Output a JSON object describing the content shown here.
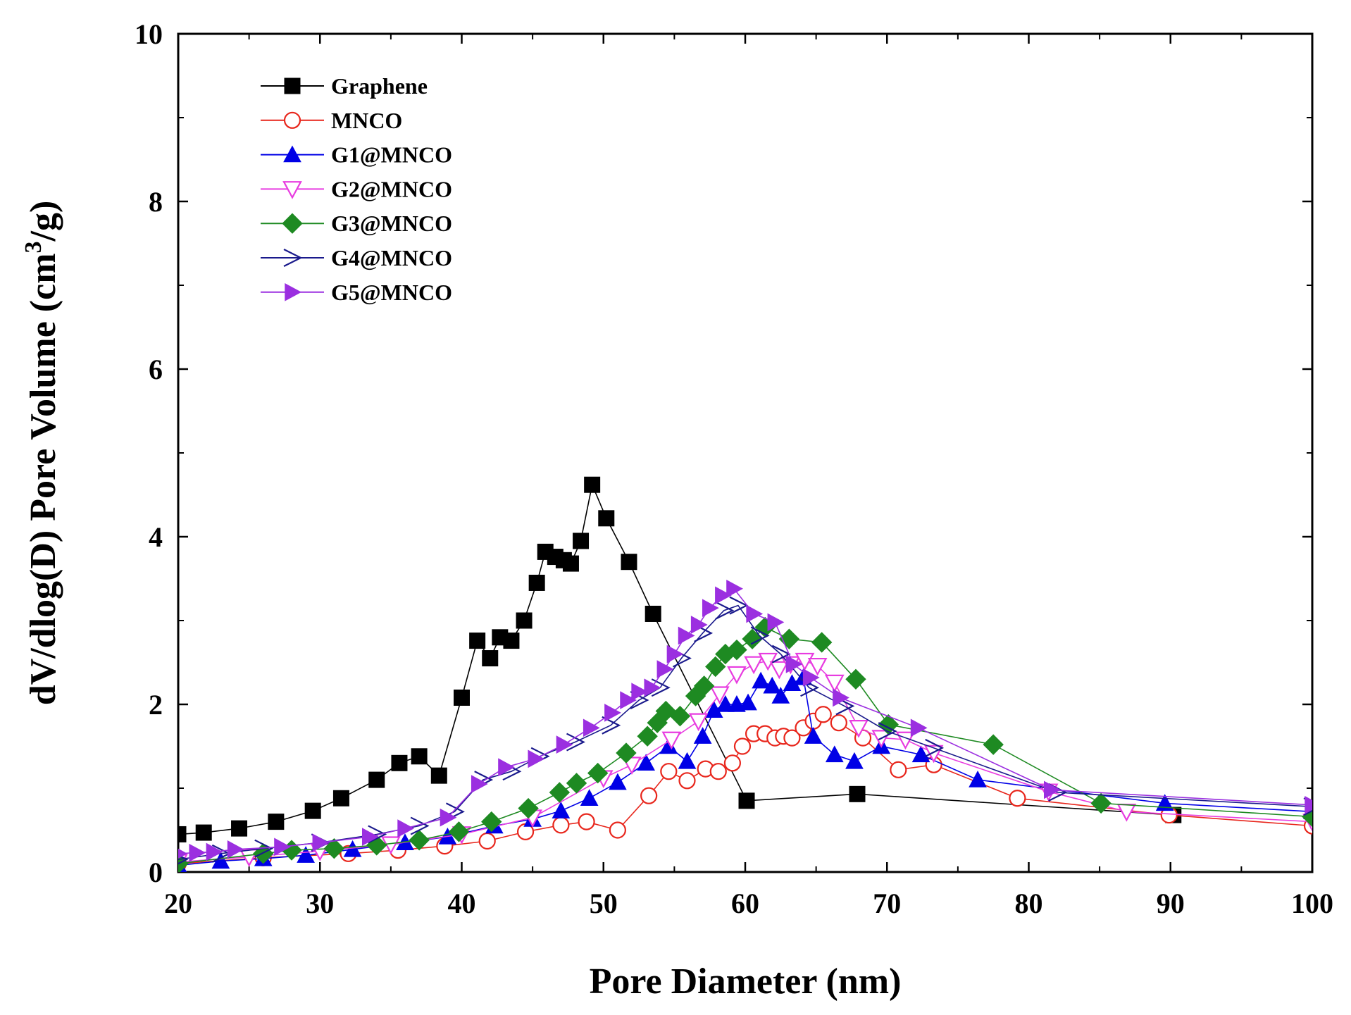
{
  "chart_data": {
    "type": "line",
    "title": "",
    "xlabel": "Pore Diameter (nm)",
    "ylabel": {
      "prefix": "dV/dlog(D) Pore Volume (cm",
      "superscript": "3",
      "suffix": "/g)"
    },
    "xlim": [
      20,
      100
    ],
    "ylim": [
      0,
      10
    ],
    "x_ticks": [
      "20",
      "30",
      "40",
      "50",
      "60",
      "70",
      "80",
      "90",
      "100"
    ],
    "y_ticks": [
      "0",
      "2",
      "4",
      "6",
      "8",
      "10"
    ],
    "legend_position": "top-left",
    "series": [
      {
        "name": "Graphene",
        "color": "#000000",
        "marker": "square-filled",
        "points": [
          [
            20,
            0.45
          ],
          [
            21.8,
            0.47
          ],
          [
            24.3,
            0.52
          ],
          [
            26.9,
            0.6
          ],
          [
            29.5,
            0.73
          ],
          [
            31.5,
            0.88
          ],
          [
            34,
            1.1
          ],
          [
            35.6,
            1.3
          ],
          [
            37,
            1.38
          ],
          [
            38.4,
            1.15
          ],
          [
            40,
            2.08
          ],
          [
            41.1,
            2.76
          ],
          [
            42,
            2.55
          ],
          [
            42.7,
            2.8
          ],
          [
            43.5,
            2.76
          ],
          [
            44.4,
            3.0
          ],
          [
            45.3,
            3.45
          ],
          [
            45.9,
            3.82
          ],
          [
            46.6,
            3.76
          ],
          [
            47.2,
            3.72
          ],
          [
            47.7,
            3.68
          ],
          [
            48.4,
            3.95
          ],
          [
            49.2,
            4.62
          ],
          [
            50.2,
            4.22
          ],
          [
            51.8,
            3.7
          ],
          [
            53.5,
            3.08
          ],
          [
            60.1,
            0.85
          ],
          [
            67.9,
            0.93
          ],
          [
            90.2,
            0.68
          ]
        ]
      },
      {
        "name": "MNCO",
        "color": "#e8261c",
        "marker": "circle-open",
        "points": [
          [
            20,
            0.1
          ],
          [
            26,
            0.17
          ],
          [
            32,
            0.22
          ],
          [
            35.5,
            0.26
          ],
          [
            38.8,
            0.31
          ],
          [
            41.8,
            0.37
          ],
          [
            44.5,
            0.48
          ],
          [
            47,
            0.56
          ],
          [
            48.8,
            0.6
          ],
          [
            51,
            0.5
          ],
          [
            53.2,
            0.91
          ],
          [
            54.6,
            1.2
          ],
          [
            55.9,
            1.09
          ],
          [
            57.2,
            1.23
          ],
          [
            58.1,
            1.2
          ],
          [
            59.1,
            1.3
          ],
          [
            59.8,
            1.5
          ],
          [
            60.6,
            1.65
          ],
          [
            61.4,
            1.65
          ],
          [
            62.1,
            1.6
          ],
          [
            62.7,
            1.62
          ],
          [
            63.3,
            1.6
          ],
          [
            64.1,
            1.72
          ],
          [
            64.8,
            1.8
          ],
          [
            65.5,
            1.88
          ],
          [
            66.6,
            1.78
          ],
          [
            68.3,
            1.6
          ],
          [
            70.8,
            1.22
          ],
          [
            73.3,
            1.28
          ],
          [
            79.2,
            0.88
          ],
          [
            89.9,
            0.68
          ],
          [
            100,
            0.55
          ]
        ]
      },
      {
        "name": "G1@MNCO",
        "color": "#0000e6",
        "marker": "triangle-up-filled",
        "points": [
          [
            20,
            0.08
          ],
          [
            23,
            0.13
          ],
          [
            26,
            0.16
          ],
          [
            29,
            0.2
          ],
          [
            32.3,
            0.27
          ],
          [
            36,
            0.35
          ],
          [
            39,
            0.42
          ],
          [
            42.3,
            0.55
          ],
          [
            45,
            0.63
          ],
          [
            47,
            0.73
          ],
          [
            49,
            0.88
          ],
          [
            51,
            1.07
          ],
          [
            53,
            1.3
          ],
          [
            54.6,
            1.5
          ],
          [
            55.9,
            1.32
          ],
          [
            57,
            1.62
          ],
          [
            57.8,
            1.93
          ],
          [
            58.6,
            2.0
          ],
          [
            59.4,
            2.0
          ],
          [
            60.2,
            2.02
          ],
          [
            61.1,
            2.28
          ],
          [
            61.9,
            2.22
          ],
          [
            62.5,
            2.1
          ],
          [
            63.3,
            2.25
          ],
          [
            64.1,
            2.32
          ],
          [
            64.8,
            1.62
          ],
          [
            66.3,
            1.4
          ],
          [
            67.7,
            1.32
          ],
          [
            69.6,
            1.5
          ],
          [
            72.4,
            1.4
          ],
          [
            76.4,
            1.1
          ],
          [
            89.6,
            0.82
          ],
          [
            100,
            0.72
          ]
        ]
      },
      {
        "name": "G2@MNCO",
        "color": "#e83ce0",
        "marker": "triangle-down-open",
        "points": [
          [
            20,
            0.12
          ],
          [
            25,
            0.18
          ],
          [
            30,
            0.25
          ],
          [
            35,
            0.33
          ],
          [
            40,
            0.45
          ],
          [
            45,
            0.65
          ],
          [
            50,
            1.12
          ],
          [
            52,
            1.28
          ],
          [
            54.8,
            1.58
          ],
          [
            56.7,
            1.8
          ],
          [
            58.2,
            2.12
          ],
          [
            59.4,
            2.36
          ],
          [
            60.6,
            2.48
          ],
          [
            61.6,
            2.52
          ],
          [
            62.4,
            2.42
          ],
          [
            63.2,
            2.48
          ],
          [
            64.2,
            2.52
          ],
          [
            65.1,
            2.46
          ],
          [
            66.3,
            2.26
          ],
          [
            68,
            1.72
          ],
          [
            69.6,
            1.6
          ],
          [
            71.3,
            1.58
          ],
          [
            73.3,
            1.42
          ],
          [
            81.4,
            0.96
          ],
          [
            86.9,
            0.72
          ],
          [
            100,
            0.6
          ]
        ]
      },
      {
        "name": "G3@MNCO",
        "color": "#1e8a22",
        "marker": "diamond-filled",
        "points": [
          [
            20,
            0.1
          ],
          [
            26,
            0.22
          ],
          [
            28,
            0.26
          ],
          [
            31,
            0.28
          ],
          [
            34,
            0.32
          ],
          [
            37,
            0.38
          ],
          [
            39.8,
            0.48
          ],
          [
            42.1,
            0.6
          ],
          [
            44.7,
            0.76
          ],
          [
            46.9,
            0.95
          ],
          [
            48.1,
            1.06
          ],
          [
            49.6,
            1.18
          ],
          [
            51.6,
            1.42
          ],
          [
            53.1,
            1.62
          ],
          [
            53.8,
            1.78
          ],
          [
            54.4,
            1.92
          ],
          [
            55.4,
            1.86
          ],
          [
            56.5,
            2.1
          ],
          [
            57.1,
            2.22
          ],
          [
            57.9,
            2.45
          ],
          [
            58.6,
            2.6
          ],
          [
            59.4,
            2.65
          ],
          [
            60.5,
            2.78
          ],
          [
            61.4,
            2.92
          ],
          [
            63.1,
            2.78
          ],
          [
            65.4,
            2.74
          ],
          [
            67.8,
            2.3
          ],
          [
            70.1,
            1.76
          ],
          [
            77.5,
            1.52
          ],
          [
            85.1,
            0.82
          ],
          [
            100,
            0.66
          ]
        ]
      },
      {
        "name": "G4@MNCO",
        "color": "#1a1a8c",
        "marker": "chevron-right-open",
        "points": [
          [
            20,
            0.15
          ],
          [
            23,
            0.22
          ],
          [
            26,
            0.28
          ],
          [
            30,
            0.35
          ],
          [
            34,
            0.45
          ],
          [
            37,
            0.55
          ],
          [
            39.5,
            0.72
          ],
          [
            41.5,
            1.1
          ],
          [
            43.5,
            1.2
          ],
          [
            45.5,
            1.38
          ],
          [
            48,
            1.55
          ],
          [
            50.5,
            1.75
          ],
          [
            52.5,
            2.05
          ],
          [
            54,
            2.2
          ],
          [
            55.5,
            2.55
          ],
          [
            57,
            2.85
          ],
          [
            58.5,
            3.12
          ],
          [
            59.5,
            3.18
          ],
          [
            61,
            2.82
          ],
          [
            62.5,
            2.6
          ],
          [
            64.5,
            2.2
          ],
          [
            67,
            1.98
          ],
          [
            70,
            1.68
          ],
          [
            73.3,
            1.48
          ],
          [
            82,
            0.95
          ],
          [
            100,
            0.78
          ]
        ]
      },
      {
        "name": "G5@MNCO",
        "color": "#9b2fe0",
        "marker": "triangle-right-filled",
        "points": [
          [
            20,
            0.22
          ],
          [
            21.3,
            0.23
          ],
          [
            22.5,
            0.24
          ],
          [
            24,
            0.27
          ],
          [
            27.3,
            0.3
          ],
          [
            30,
            0.35
          ],
          [
            33.5,
            0.42
          ],
          [
            36,
            0.52
          ],
          [
            39,
            0.65
          ],
          [
            41.2,
            1.05
          ],
          [
            43.1,
            1.25
          ],
          [
            45.2,
            1.35
          ],
          [
            47.2,
            1.52
          ],
          [
            49.1,
            1.72
          ],
          [
            50.6,
            1.9
          ],
          [
            51.7,
            2.05
          ],
          [
            52.5,
            2.15
          ],
          [
            53.4,
            2.2
          ],
          [
            54.3,
            2.42
          ],
          [
            55,
            2.6
          ],
          [
            55.8,
            2.82
          ],
          [
            56.7,
            2.95
          ],
          [
            57.5,
            3.15
          ],
          [
            58.4,
            3.3
          ],
          [
            59.2,
            3.38
          ],
          [
            60.6,
            3.08
          ],
          [
            62.1,
            2.98
          ],
          [
            63.4,
            2.48
          ],
          [
            64.6,
            2.32
          ],
          [
            66.7,
            2.08
          ],
          [
            72.2,
            1.72
          ],
          [
            81.6,
            0.98
          ],
          [
            100,
            0.8
          ]
        ]
      }
    ]
  }
}
